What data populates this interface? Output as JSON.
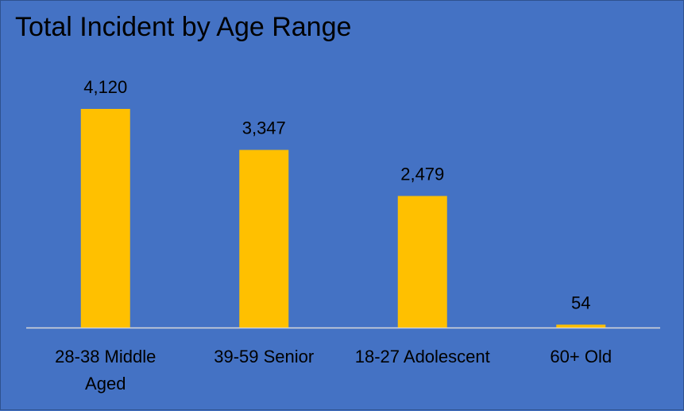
{
  "chart_data": {
    "type": "bar",
    "title": "Total Incident by Age Range",
    "xlabel": "",
    "ylabel": "",
    "categories": [
      "28-38 Middle Aged",
      "39-59 Senior",
      "18-27 Adolescent",
      "60+ Old"
    ],
    "category_lines": [
      [
        "28-38 Middle",
        "Aged"
      ],
      [
        "39-59 Senior"
      ],
      [
        "18-27 Adolescent"
      ],
      [
        "60+ Old"
      ]
    ],
    "values": [
      4120,
      3347,
      2479,
      54
    ],
    "value_labels": [
      "4,120",
      "3,347",
      "2,479",
      "54"
    ],
    "ylim": [
      0,
      4500
    ],
    "grid": false,
    "legend": "none",
    "colors": {
      "bar": "#FFC000",
      "background": "#4472C4",
      "axis": "#D9D9D9",
      "text": "#000000"
    }
  }
}
